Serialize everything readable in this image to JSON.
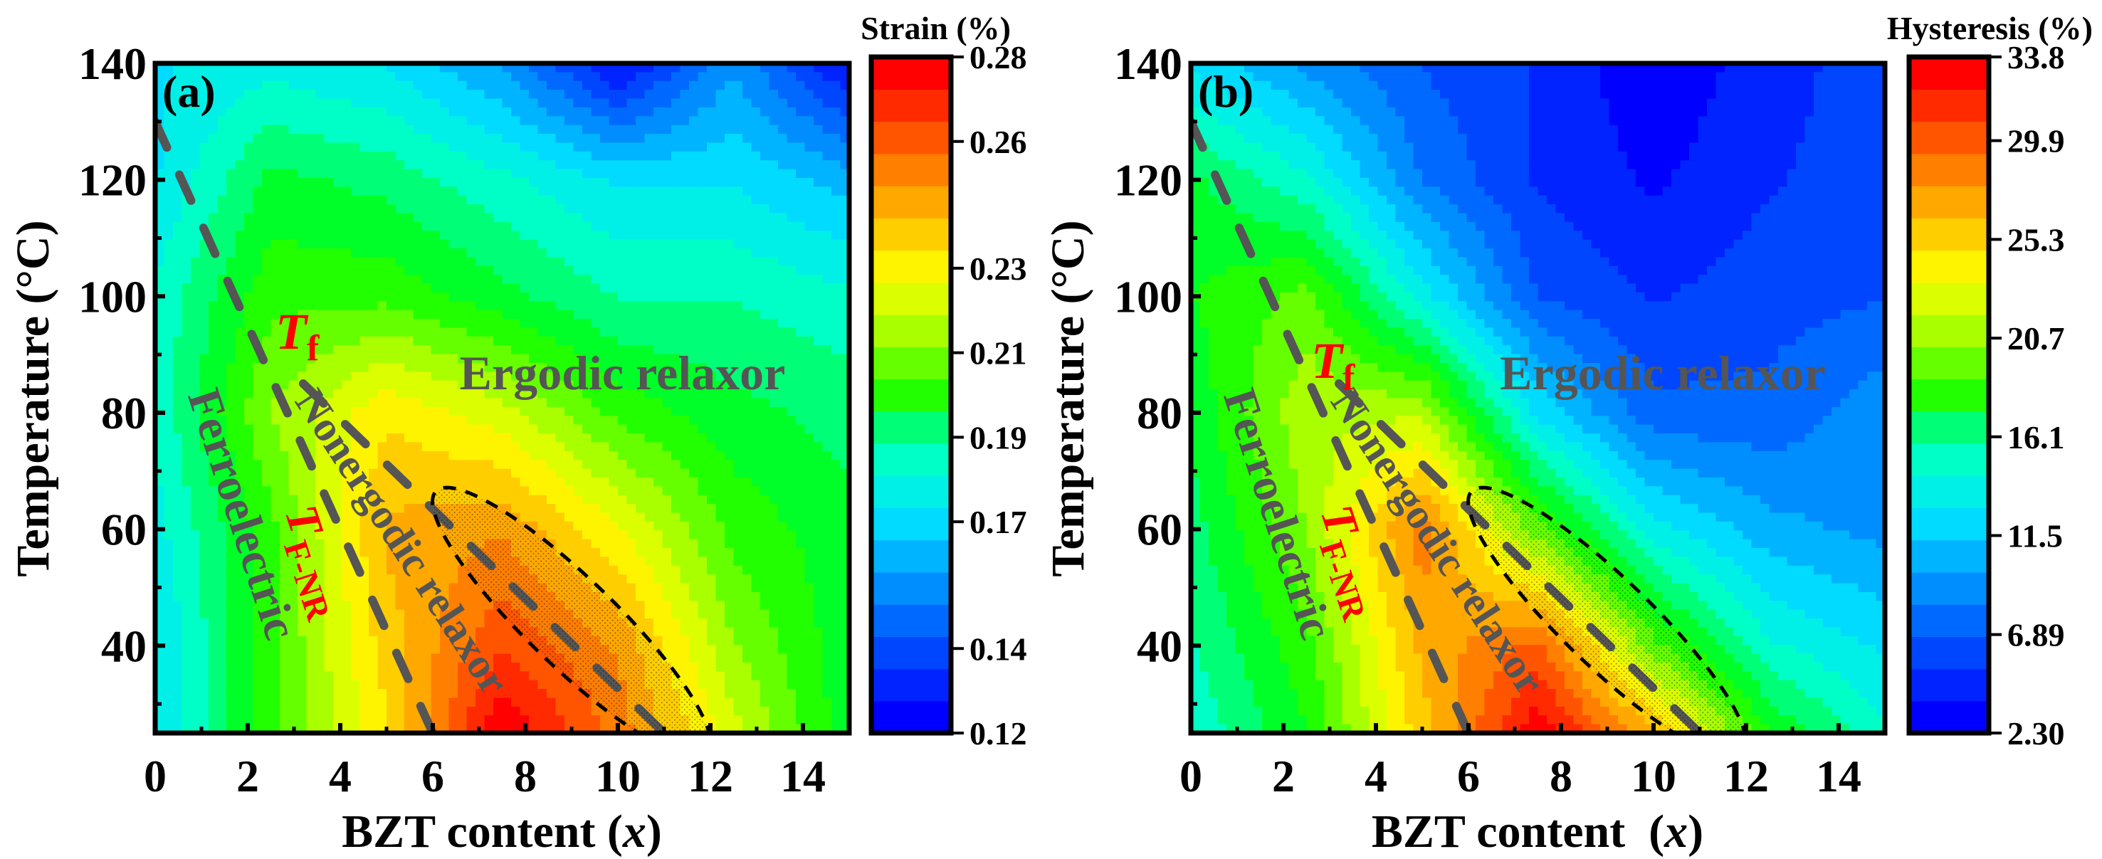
{
  "chart_data": [
    {
      "type": "heatmap",
      "panel_label": "(a)",
      "title": "",
      "xlabel": "BZT content (",
      "xlabel_var": "x",
      "xlabel_close": ")",
      "ylabel": "Temperature (°C)",
      "xlim": [
        0,
        15
      ],
      "ylim": [
        25,
        140
      ],
      "x_ticks": [
        "0",
        "2",
        "4",
        "6",
        "8",
        "10",
        "12",
        "14"
      ],
      "x_tick_values": [
        0,
        2,
        4,
        6,
        8,
        10,
        12,
        14
      ],
      "y_ticks": [
        "40",
        "60",
        "80",
        "100",
        "120",
        "140"
      ],
      "y_tick_values": [
        40,
        60,
        80,
        100,
        120,
        140
      ],
      "colorbar": {
        "label": "Strain (%)",
        "range": [
          0.12,
          0.28
        ],
        "tick_labels": [
          "0.28",
          "0.26",
          "0.23",
          "0.21",
          "0.19",
          "0.17",
          "0.14",
          "0.12"
        ],
        "tick_values": [
          0.28,
          0.26,
          0.23,
          0.21,
          0.19,
          0.17,
          0.14,
          0.12
        ]
      },
      "grid_x": [
        0,
        2.5,
        5,
        7.5,
        10,
        12.5,
        15
      ],
      "grid_y": [
        25,
        40,
        60,
        80,
        100,
        120,
        140
      ],
      "z": [
        [
          0.17,
          0.205,
          0.235,
          0.28,
          0.255,
          0.225,
          0.195
        ],
        [
          0.17,
          0.205,
          0.24,
          0.265,
          0.25,
          0.215,
          0.195
        ],
        [
          0.175,
          0.205,
          0.245,
          0.25,
          0.23,
          0.205,
          0.195
        ],
        [
          0.18,
          0.215,
          0.235,
          0.225,
          0.205,
          0.195,
          0.19
        ],
        [
          0.18,
          0.205,
          0.205,
          0.195,
          0.185,
          0.185,
          0.18
        ],
        [
          0.17,
          0.195,
          0.19,
          0.18,
          0.17,
          0.17,
          0.16
        ],
        [
          0.17,
          0.175,
          0.17,
          0.155,
          0.125,
          0.155,
          0.125
        ]
      ],
      "annotations": {
        "region_ergodic": "Ergodic relaxor",
        "region_nonergodic": "Nonergodic relaxor",
        "region_ferroelectric": "Ferroelectric",
        "tf_main": "T",
        "tf_sub": "f",
        "tfnr_main": "T",
        "tfnr_sub": "F-NR"
      },
      "boundary_lines": {
        "Tf": [
          [
            0,
            130
          ],
          [
            6,
            25
          ]
        ],
        "TF_NR": [
          [
            3.2,
            85
          ],
          [
            11,
            25
          ]
        ]
      }
    },
    {
      "type": "heatmap",
      "panel_label": "(b)",
      "title": "",
      "xlabel": "BZT content  (",
      "xlabel_var": "x",
      "xlabel_close": ")",
      "ylabel": "Temperature (°C)",
      "xlim": [
        0,
        15
      ],
      "ylim": [
        25,
        140
      ],
      "x_ticks": [
        "0",
        "2",
        "4",
        "6",
        "8",
        "10",
        "12",
        "14"
      ],
      "x_tick_values": [
        0,
        2,
        4,
        6,
        8,
        10,
        12,
        14
      ],
      "y_ticks": [
        "40",
        "60",
        "80",
        "100",
        "120",
        "140"
      ],
      "y_tick_values": [
        40,
        60,
        80,
        100,
        120,
        140
      ],
      "colorbar": {
        "label": "Hysteresis (%)",
        "range": [
          2.3,
          33.8
        ],
        "tick_labels": [
          "33.8",
          "29.9",
          "25.3",
          "20.7",
          "16.1",
          "11.5",
          "6.89",
          "2.30"
        ],
        "tick_values": [
          33.8,
          29.9,
          25.3,
          20.7,
          16.1,
          11.5,
          6.89,
          2.3
        ]
      },
      "grid_x": [
        0,
        2.5,
        5,
        7.5,
        10,
        12.5,
        15
      ],
      "grid_y": [
        25,
        40,
        60,
        80,
        100,
        120,
        140
      ],
      "z": [
        [
          14.0,
          18.0,
          26.0,
          33.5,
          27.0,
          18.0,
          14.0
        ],
        [
          15.0,
          19.0,
          27.0,
          30.0,
          20.0,
          14.0,
          12.0
        ],
        [
          16.0,
          21.0,
          29.0,
          20.0,
          13.0,
          10.0,
          9.0
        ],
        [
          17.0,
          22.0,
          22.0,
          12.0,
          7.0,
          7.0,
          9.0
        ],
        [
          18.0,
          20.0,
          13.0,
          6.5,
          5.0,
          6.0,
          6.5
        ],
        [
          17.0,
          14.0,
          8.0,
          5.0,
          3.5,
          5.0,
          6.0
        ],
        [
          12.0,
          9.0,
          6.5,
          5.0,
          2.5,
          4.5,
          6.0
        ]
      ],
      "annotations": {
        "region_ergodic": "Ergodic relaxor",
        "region_nonergodic": "Nonergodic relaxor",
        "region_ferroelectric": "Ferroelectric",
        "tf_main": "T",
        "tf_sub": "f",
        "tfnr_main": "T",
        "tfnr_sub": "F-NR"
      },
      "boundary_lines": {
        "Tf": [
          [
            0,
            130
          ],
          [
            6,
            25
          ]
        ],
        "TF_NR": [
          [
            3.2,
            85
          ],
          [
            11,
            25
          ]
        ]
      }
    }
  ],
  "colors": {
    "boundary": "#555555",
    "annotation_red": "#ff0000",
    "region_text": "#555555"
  }
}
